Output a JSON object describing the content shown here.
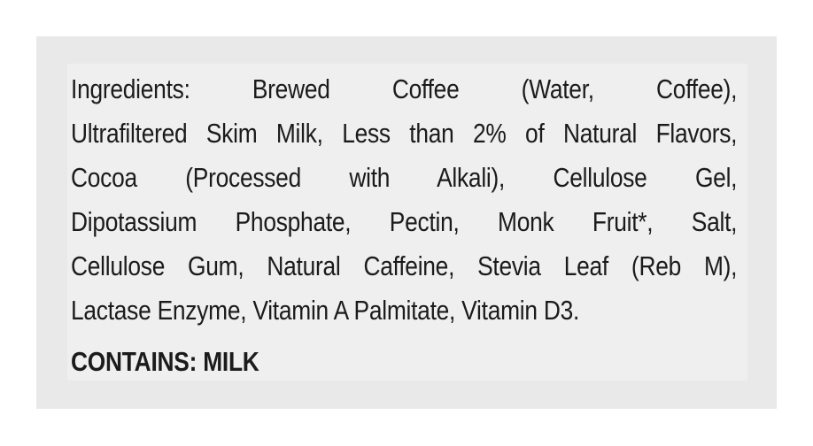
{
  "label": {
    "ingredient_lines": [
      "Ingredients: Brewed Coffee (Water, Coffee),",
      "Ultrafiltered Skim Milk, Less than 2% of Natural Flavors,",
      "Cocoa (Processed with Alkali), Cellulose Gel,",
      "Dipotassium Phosphate, Pectin, Monk Fruit*, Salt,",
      "Cellulose Gum, Natural Caffeine, Stevia Leaf (Reb M),",
      "Lactase Enzyme, Vitamin A Palmitate, Vitamin D3."
    ],
    "allergen_statement": "CONTAINS: MILK"
  }
}
